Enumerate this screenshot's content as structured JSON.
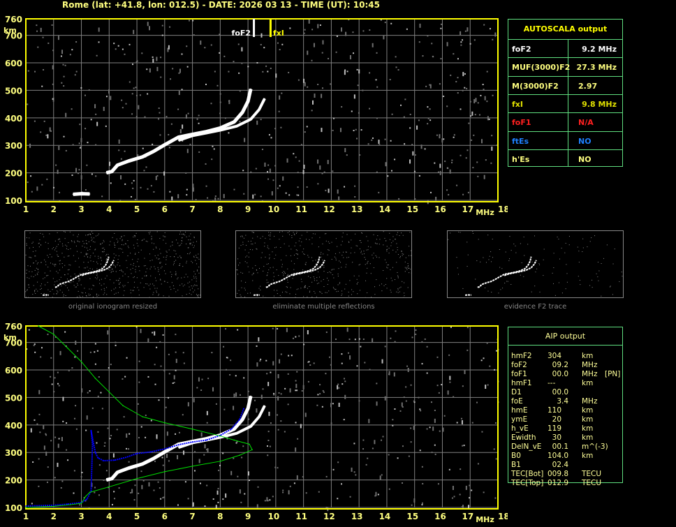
{
  "header": {
    "title": "Rome (lat: +41.8, lon: 012.5) - DATE: 2026 03 13 - TIME (UT): 10:45"
  },
  "colors": {
    "frame": "#ffff00",
    "axis_labels": "#ffff80",
    "grid": "#808080",
    "trace": "#ffffff",
    "foF2_marker": "#ffffff",
    "fxI_marker": "#ffff00",
    "true_height_profile": "#00e000",
    "synthesized_trace": "#0000ff",
    "table_border": "#60e080"
  },
  "autoscala": {
    "title": "AUTOSCALA output",
    "rows": [
      {
        "label": "foF2",
        "value": "9.2 MHz",
        "color": "#ffffff"
      },
      {
        "label": "MUF(3000)F2",
        "value": "27.3 MHz",
        "color": "#ffff80"
      },
      {
        "label": "M(3000)F2",
        "value": "2.97",
        "color": "#ffff80"
      },
      {
        "label": "fxI",
        "value": "9.8 MHz",
        "color": "#e0e000"
      },
      {
        "label": "foF1",
        "value": "N/A",
        "color": "#ff2020"
      },
      {
        "label": "ftEs",
        "value": "NO",
        "color": "#1e80ff"
      },
      {
        "label": "h'Es",
        "value": "NO",
        "color": "#ffff80"
      }
    ]
  },
  "aip": {
    "title": "AIP output",
    "rows": [
      {
        "name": "hmF2",
        "value": "304",
        "unit": "km",
        "extra": ""
      },
      {
        "name": "foF2",
        "value": "  09.2",
        "unit": "MHz",
        "extra": ""
      },
      {
        "name": "foF1",
        "value": "  00.0",
        "unit": "MHz",
        "extra": "[PN]"
      },
      {
        "name": "hmF1",
        "value": "---",
        "unit": "km",
        "extra": ""
      },
      {
        "name": "D1",
        "value": "  00.0",
        "unit": "",
        "extra": ""
      },
      {
        "name": "foE",
        "value": "    3.4",
        "unit": "MHz",
        "extra": ""
      },
      {
        "name": "hmE",
        "value": "110",
        "unit": "km",
        "extra": ""
      },
      {
        "name": "ymE",
        "value": "  20",
        "unit": "km",
        "extra": ""
      },
      {
        "name": "h_vE",
        "value": "119",
        "unit": "km",
        "extra": ""
      },
      {
        "name": "Ewidth",
        "value": "  30",
        "unit": "km",
        "extra": ""
      },
      {
        "name": "DelN_vE",
        "value": "  00.1",
        "unit": "m^(-3)",
        "extra": ""
      },
      {
        "name": "B0",
        "value": "104.0",
        "unit": "km",
        "extra": ""
      },
      {
        "name": "B1",
        "value": "  02.4",
        "unit": "",
        "extra": ""
      },
      {
        "name": "TEC[Bot]",
        "value": "009.8",
        "unit": "TECU",
        "extra": ""
      },
      {
        "name": "TEC[Top]",
        "value": "012.9",
        "unit": "TECU",
        "extra": ""
      }
    ]
  },
  "panels": [
    {
      "label": "original ionogram resized"
    },
    {
      "label": "eliminate multiple reflections"
    },
    {
      "label": "evidence F2 trace"
    }
  ],
  "chart_data": [
    {
      "type": "scatter",
      "title": "",
      "xlabel": "MHz",
      "ylabel": "km",
      "xlim": [
        1,
        18
      ],
      "ylim": [
        100,
        760
      ],
      "x_ticks": [
        "1",
        "2",
        "3",
        "4",
        "5",
        "6",
        "7",
        "8",
        "9",
        "10",
        "11",
        "12",
        "13",
        "14",
        "15",
        "16",
        "17",
        "18"
      ],
      "y_ticks": [
        "760",
        "700",
        "600",
        "500",
        "400",
        "300",
        "200",
        "100"
      ],
      "grid": true,
      "markers": [
        {
          "label": "foF2",
          "freq": 9.2
        },
        {
          "label": "fxI",
          "freq": 9.8
        }
      ],
      "series": [
        {
          "kind": "ordinary",
          "points": [
            [
              3.9,
              200
            ],
            [
              4.1,
              205
            ],
            [
              4.3,
              228
            ],
            [
              4.7,
              243
            ],
            [
              5.2,
              258
            ],
            [
              5.6,
              278
            ],
            [
              6.0,
              302
            ],
            [
              6.5,
              330
            ],
            [
              7.0,
              340
            ],
            [
              7.5,
              350
            ],
            [
              8.0,
              363
            ],
            [
              8.5,
              385
            ],
            [
              8.8,
              420
            ],
            [
              9.0,
              460
            ],
            [
              9.1,
              505
            ]
          ]
        },
        {
          "kind": "extraordinary",
          "points": [
            [
              6.5,
              318
            ],
            [
              7.0,
              335
            ],
            [
              7.5,
              345
            ],
            [
              8.0,
              355
            ],
            [
              8.6,
              370
            ],
            [
              9.1,
              395
            ],
            [
              9.4,
              430
            ],
            [
              9.6,
              470
            ]
          ]
        },
        {
          "kind": "E",
          "points": [
            [
              2.7,
              122
            ],
            [
              3.0,
              124
            ],
            [
              3.3,
              123
            ]
          ]
        }
      ]
    },
    {
      "type": "scatter",
      "title": "",
      "xlabel": "MHz",
      "ylabel": "km",
      "xlim": [
        1,
        18
      ],
      "ylim": [
        100,
        760
      ],
      "x_ticks": [
        "1",
        "2",
        "3",
        "4",
        "5",
        "6",
        "7",
        "8",
        "9",
        "10",
        "11",
        "12",
        "13",
        "14",
        "15",
        "16",
        "17",
        "18"
      ],
      "y_ticks": [
        "760",
        "700",
        "600",
        "500",
        "400",
        "300",
        "200",
        "100"
      ],
      "grid": true,
      "series": [
        {
          "kind": "ordinary",
          "points": [
            [
              3.9,
              200
            ],
            [
              4.1,
              205
            ],
            [
              4.3,
              228
            ],
            [
              4.7,
              243
            ],
            [
              5.2,
              258
            ],
            [
              5.6,
              278
            ],
            [
              6.0,
              302
            ],
            [
              6.5,
              330
            ],
            [
              7.0,
              340
            ],
            [
              7.5,
              350
            ],
            [
              8.0,
              363
            ],
            [
              8.5,
              385
            ],
            [
              8.8,
              420
            ],
            [
              9.0,
              460
            ],
            [
              9.1,
              505
            ]
          ]
        },
        {
          "kind": "extraordinary",
          "points": [
            [
              6.5,
              318
            ],
            [
              7.0,
              335
            ],
            [
              7.5,
              345
            ],
            [
              8.0,
              355
            ],
            [
              8.6,
              370
            ],
            [
              9.1,
              395
            ],
            [
              9.4,
              430
            ],
            [
              9.6,
              470
            ]
          ]
        },
        {
          "kind": "synthesized",
          "points": [
            [
              1.0,
              105
            ],
            [
              2.0,
              108
            ],
            [
              2.5,
              112
            ],
            [
              3.0,
              118
            ],
            [
              3.2,
              130
            ],
            [
              3.35,
              160
            ],
            [
              3.4,
              330
            ],
            [
              3.35,
              380
            ],
            [
              3.5,
              300
            ],
            [
              3.6,
              280
            ],
            [
              3.8,
              270
            ],
            [
              4.2,
              272
            ],
            [
              4.6,
              282
            ],
            [
              5.0,
              296
            ],
            [
              5.5,
              302
            ],
            [
              6.0,
              313
            ],
            [
              6.5,
              328
            ],
            [
              7.0,
              338
            ],
            [
              7.5,
              345
            ],
            [
              8.0,
              362
            ],
            [
              8.4,
              385
            ],
            [
              8.7,
              420
            ],
            [
              8.85,
              460
            ]
          ]
        },
        {
          "kind": "true_height",
          "points": [
            [
              1.0,
              100
            ],
            [
              2.0,
              104
            ],
            [
              2.6,
              110
            ],
            [
              3.0,
              115
            ],
            [
              3.15,
              140
            ],
            [
              3.3,
              155
            ],
            [
              4.0,
              175
            ],
            [
              5.0,
              205
            ],
            [
              6.0,
              230
            ],
            [
              7.0,
              250
            ],
            [
              8.0,
              268
            ],
            [
              8.7,
              290
            ],
            [
              9.15,
              310
            ],
            [
              9.05,
              330
            ],
            [
              8.5,
              345
            ],
            [
              8.0,
              360
            ],
            [
              7.0,
              385
            ],
            [
              6.0,
              408
            ],
            [
              5.2,
              430
            ],
            [
              4.5,
              470
            ],
            [
              4.0,
              520
            ],
            [
              3.5,
              570
            ],
            [
              3.0,
              630
            ],
            [
              2.5,
              680
            ],
            [
              2.0,
              730
            ],
            [
              1.45,
              760
            ]
          ]
        }
      ]
    }
  ]
}
